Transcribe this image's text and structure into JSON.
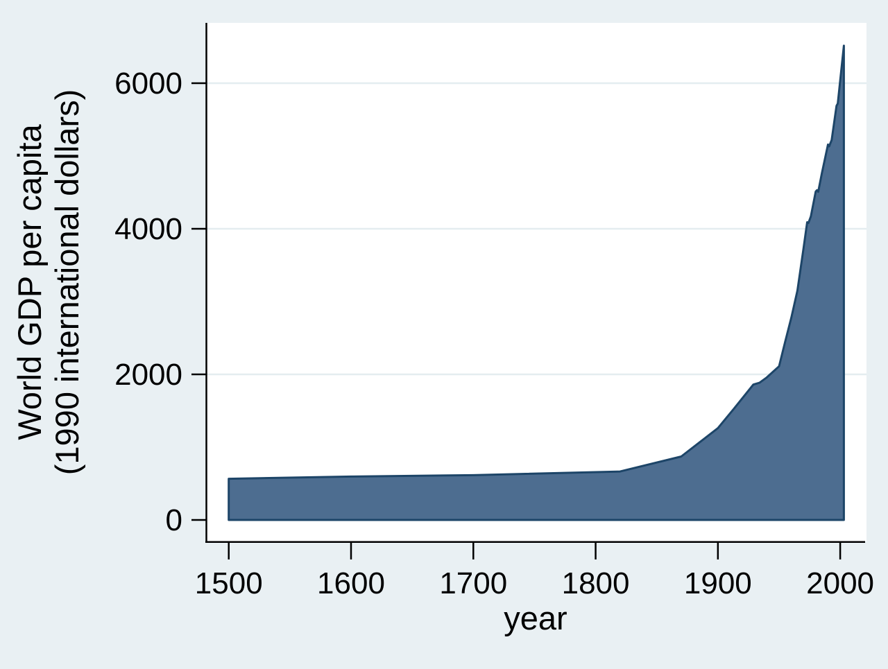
{
  "theme": {
    "background": "#e9f0f3",
    "plot_background": "#ffffff",
    "grid_color": "#e4edf0",
    "axis_color": "#000000",
    "area_fill": "#4d6d90",
    "area_line": "#1d4568"
  },
  "chart_data": {
    "type": "area",
    "title": "",
    "xlabel": "year",
    "ylabel_line1": "World GDP per capita",
    "ylabel_line2": "(1990 international dollars)",
    "x": [
      1500,
      1600,
      1700,
      1820,
      1870,
      1900,
      1913,
      1929,
      1934,
      1940,
      1950,
      1955,
      1960,
      1965,
      1970,
      1973,
      1974,
      1976,
      1980,
      1981,
      1982,
      1985,
      1990,
      1991,
      1993,
      1997,
      1998,
      2000,
      2003
    ],
    "y": [
      566,
      596,
      615,
      666,
      871,
      1261,
      1526,
      1860,
      1885,
      1958,
      2111,
      2450,
      2777,
      3150,
      3729,
      4091,
      4080,
      4170,
      4512,
      4530,
      4508,
      4764,
      5157,
      5133,
      5220,
      5690,
      5720,
      6038,
      6516
    ],
    "baseline": 0,
    "xticks": [
      1500,
      1600,
      1700,
      1800,
      1900,
      2000
    ],
    "yticks": [
      0,
      2000,
      4000,
      6000
    ],
    "xlim": [
      1482,
      2021.5
    ],
    "ylim": [
      -305,
      6829
    ],
    "grid": "horizontal-only",
    "legend": "none"
  }
}
